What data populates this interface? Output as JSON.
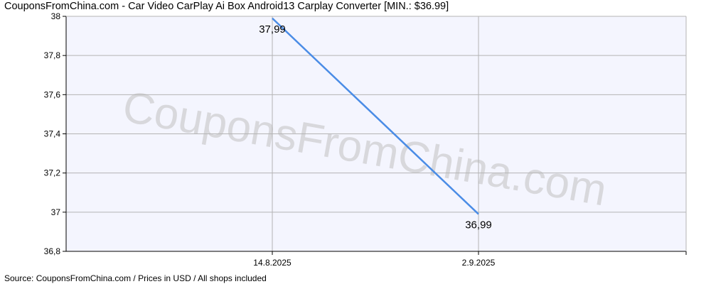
{
  "title": "CouponsFromChina.com - Car Video CarPlay Ai Box Android13 Carplay Converter [MIN.: $36.99]",
  "footer": "Source: CouponsFromChina.com / Prices in USD / All shops included",
  "watermark": "CouponsFromChina.com",
  "colors": {
    "line": "#4a8ce6",
    "plot_bg": "#f4f5fe",
    "grid": "#b4b4b4"
  },
  "chart_data": {
    "type": "line",
    "title": "CouponsFromChina.com - Car Video CarPlay Ai Box Android13 Carplay Converter [MIN.: $36.99]",
    "xlabel": "",
    "ylabel": "",
    "categories": [
      "14.8.2025",
      "2.9.2025"
    ],
    "series": [
      {
        "values": [
          37.99,
          36.99
        ],
        "data_labels": [
          "37,99",
          "36,99"
        ]
      }
    ],
    "ylim": [
      36.8,
      38
    ],
    "yticks": [
      36.8,
      37,
      37.2,
      37.4,
      37.6,
      37.8,
      38
    ],
    "ytick_labels": [
      "36,8",
      "37",
      "37,2",
      "37,4",
      "37,6",
      "37,8",
      "38"
    ],
    "grid": true,
    "legend": "none"
  }
}
